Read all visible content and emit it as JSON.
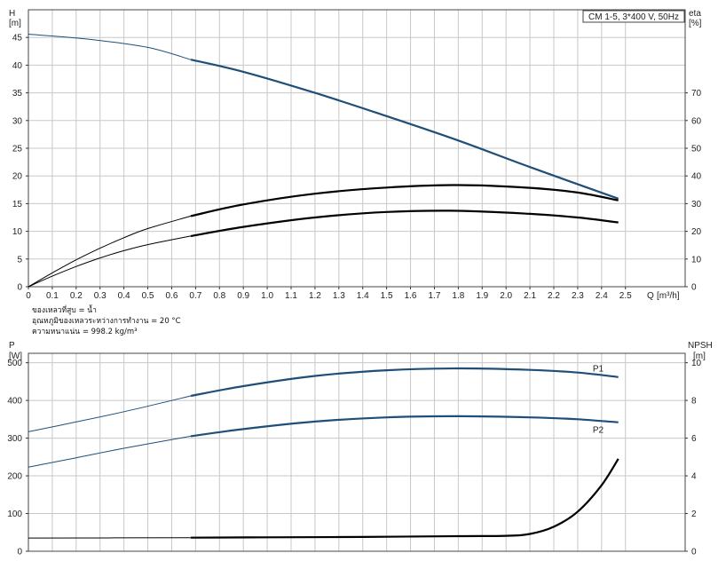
{
  "info_notes": [
    "ของเหลวที่สูบ = น้ำ",
    "อุณหภูมิของเหลวระหว่างการทำงาน = 20 °C",
    "ความหนาแน่น = 998.2 kg/m³"
  ],
  "chart_data": [
    {
      "type": "line",
      "title_box": "CM 1-5, 3*400 V, 50Hz",
      "y_label_left": "H",
      "y_unit_left": "[m]",
      "y_label_right": "eta",
      "y_unit_right": "[%]",
      "x_label": "Q",
      "x_unit": "[m³/h]",
      "xlim": [
        0,
        2.75
      ],
      "ylim_left": [
        0,
        50
      ],
      "ylim_right": [
        0,
        100
      ],
      "grid": true,
      "x_ticks": [
        "0",
        "0.1",
        "0.2",
        "0.3",
        "0.4",
        "0.5",
        "0.6",
        "0.7",
        "0.8",
        "0.9",
        "1.0",
        "1.1",
        "1.2",
        "1.3",
        "1.4",
        "1.5",
        "1.6",
        "1.7",
        "1.8",
        "1.9",
        "2.0",
        "2.1",
        "2.2",
        "2.3",
        "2.4",
        "2.5"
      ],
      "y_ticks_left": [
        "0",
        "5",
        "10",
        "15",
        "20",
        "25",
        "30",
        "35",
        "40",
        "45"
      ],
      "y_ticks_right": [
        "0",
        "10",
        "20",
        "30",
        "40",
        "50",
        "60",
        "70"
      ],
      "series": [
        {
          "axis": "left",
          "color": "#1f4e79",
          "x": [
            0,
            0.25,
            0.5,
            0.68,
            0.9,
            1.2,
            1.5,
            1.8,
            2.1,
            2.47
          ],
          "y": [
            45.6,
            44.7,
            43.2,
            41.0,
            38.8,
            35.0,
            30.8,
            26.4,
            21.6,
            15.9
          ]
        },
        {
          "axis": "right",
          "color": "#000000",
          "x": [
            0,
            0.1,
            0.2,
            0.3,
            0.4,
            0.5,
            0.68,
            0.9,
            1.2,
            1.5,
            1.8,
            2.1,
            2.3,
            2.47
          ],
          "y": [
            0,
            5.0,
            9.7,
            13.9,
            17.7,
            21.0,
            25.5,
            29.7,
            33.6,
            35.8,
            36.7,
            35.7,
            34.0,
            31.2
          ]
        },
        {
          "axis": "right",
          "color": "#000000",
          "x": [
            0,
            0.1,
            0.2,
            0.3,
            0.4,
            0.5,
            0.68,
            0.9,
            1.2,
            1.5,
            1.8,
            2.1,
            2.3,
            2.47
          ],
          "y": [
            0,
            3.8,
            7.3,
            10.4,
            13.0,
            15.2,
            18.3,
            21.6,
            25.0,
            27.0,
            27.4,
            26.3,
            25.0,
            23.2
          ]
        }
      ]
    },
    {
      "type": "line",
      "y_label_left": "P",
      "y_unit_left": "[W]",
      "y_label_right": "NPSH",
      "y_unit_right": "[m]",
      "xlim": [
        0,
        2.75
      ],
      "ylim_left": [
        0,
        525
      ],
      "ylim_right": [
        0,
        10.5
      ],
      "grid": true,
      "y_ticks_left": [
        "0",
        "100",
        "200",
        "300",
        "400",
        "500"
      ],
      "y_ticks_right": [
        "0",
        "2",
        "4",
        "6",
        "8",
        "10"
      ],
      "series": [
        {
          "name": "P1",
          "axis": "left",
          "color": "#1f4e79",
          "x": [
            0,
            0.2,
            0.4,
            0.68,
            0.9,
            1.2,
            1.5,
            1.8,
            2.1,
            2.3,
            2.47
          ],
          "y": [
            317,
            343,
            370,
            412,
            438,
            465,
            480,
            485,
            481,
            474,
            462
          ]
        },
        {
          "name": "P2",
          "axis": "left",
          "color": "#1f4e79",
          "x": [
            0,
            0.2,
            0.4,
            0.68,
            0.9,
            1.2,
            1.5,
            1.8,
            2.1,
            2.3,
            2.47
          ],
          "y": [
            223,
            248,
            273,
            305,
            324,
            344,
            355,
            358,
            355,
            350,
            342
          ]
        },
        {
          "axis": "right",
          "color": "#000000",
          "x": [
            0,
            0.68,
            1.0,
            1.4,
            1.8,
            2.0,
            2.1,
            2.2,
            2.3,
            2.4,
            2.47
          ],
          "y": [
            0.7,
            0.72,
            0.74,
            0.76,
            0.8,
            0.82,
            0.92,
            1.3,
            2.1,
            3.5,
            4.9
          ]
        }
      ]
    }
  ]
}
